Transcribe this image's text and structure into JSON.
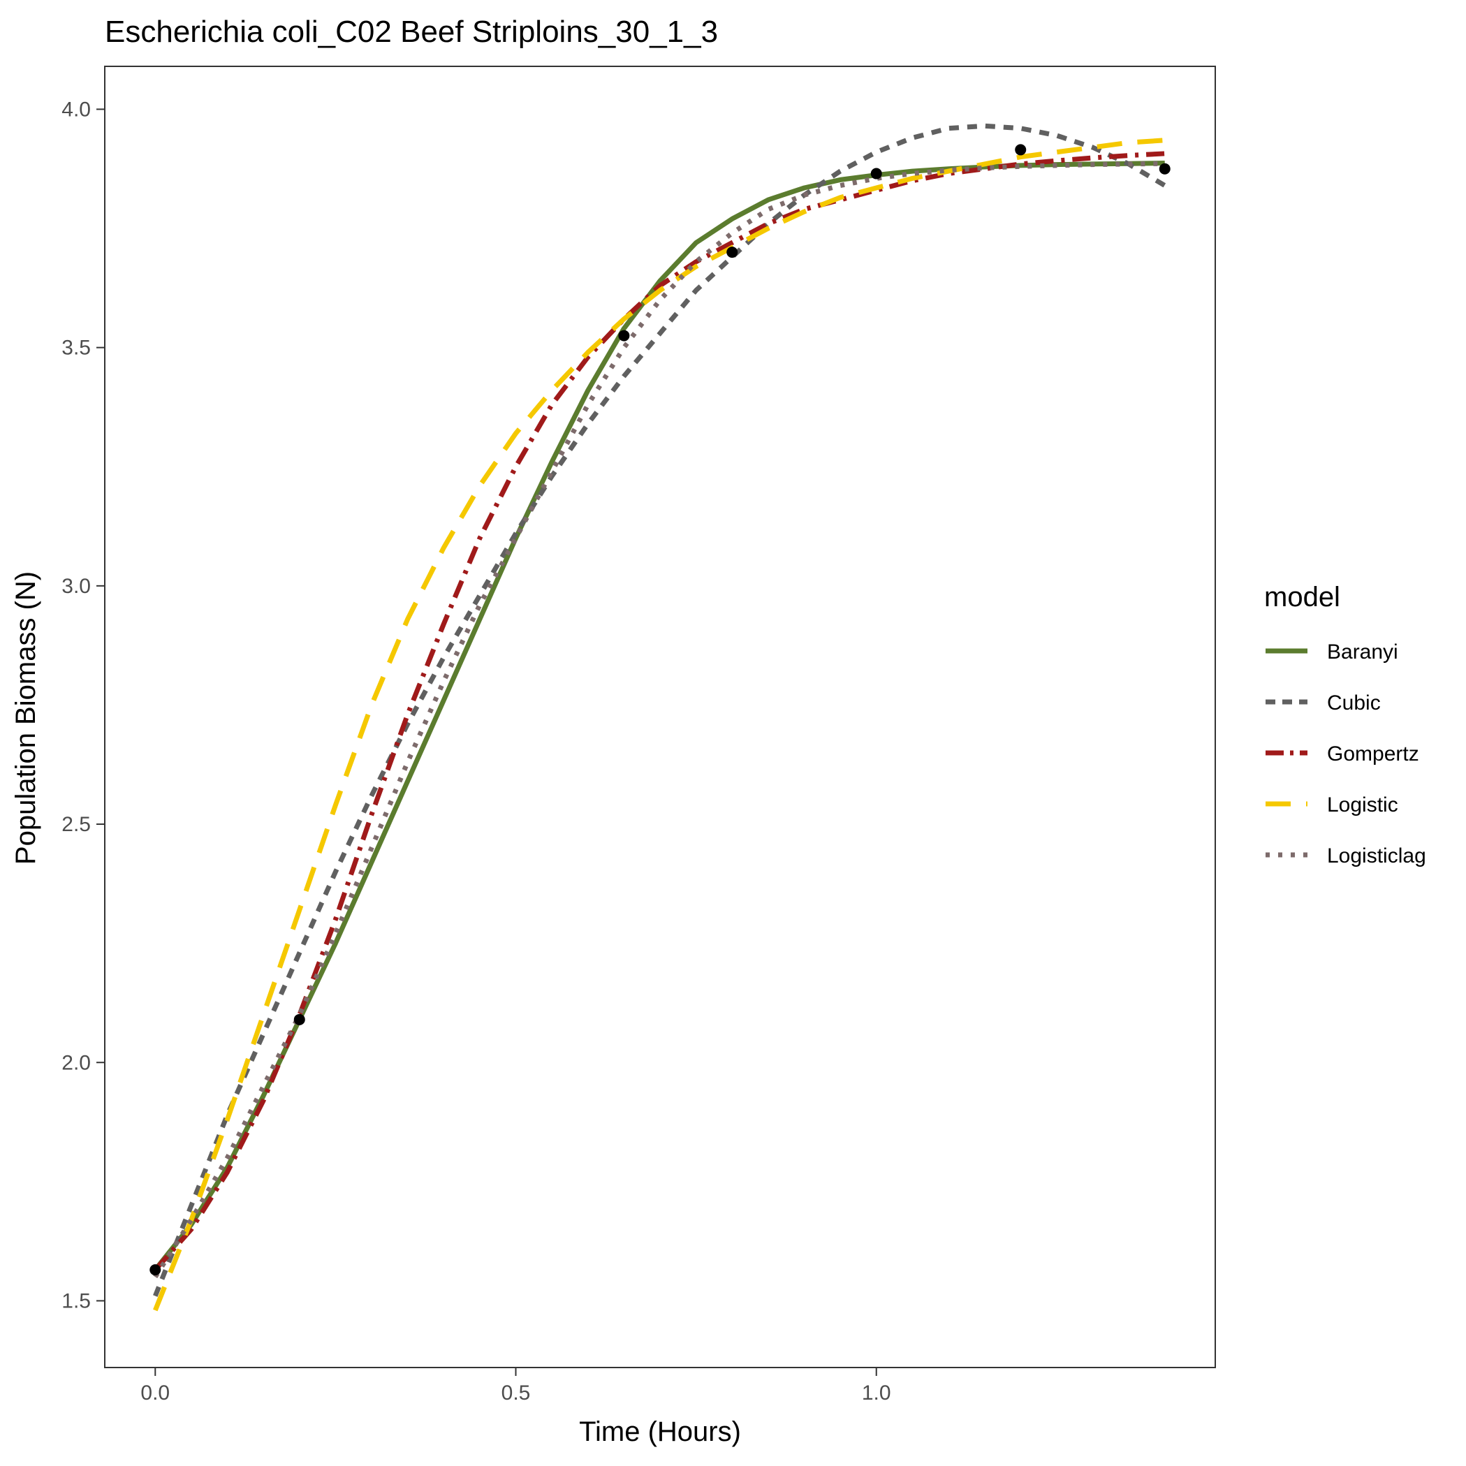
{
  "chart_data": {
    "type": "line",
    "title": "Escherichia coli_C02 Beef Striploins_30_1_3",
    "xlabel": "Time (Hours)",
    "ylabel": "Population Biomass (N)",
    "xlim": [
      -0.07,
      1.47
    ],
    "ylim": [
      1.36,
      4.09
    ],
    "x_ticks": [
      0.0,
      0.5,
      1.0
    ],
    "x_tick_labels": [
      "0.0",
      "0.5",
      "1.0"
    ],
    "y_ticks": [
      1.5,
      2.0,
      2.5,
      3.0,
      3.5,
      4.0
    ],
    "y_tick_labels": [
      "1.5",
      "2.0",
      "2.5",
      "3.0",
      "3.5",
      "4.0"
    ],
    "grid": false,
    "legend": {
      "title": "model",
      "position": "right"
    },
    "points": [
      {
        "x": 0.0,
        "y": 1.565
      },
      {
        "x": 0.2,
        "y": 2.09
      },
      {
        "x": 0.65,
        "y": 3.525
      },
      {
        "x": 0.8,
        "y": 3.7
      },
      {
        "x": 1.0,
        "y": 3.865
      },
      {
        "x": 1.2,
        "y": 3.915
      },
      {
        "x": 1.4,
        "y": 3.875
      }
    ],
    "series": [
      {
        "name": "Baranyi",
        "color": "#5b7c2e",
        "dash": "solid",
        "x": [
          0.0,
          0.05,
          0.1,
          0.15,
          0.2,
          0.25,
          0.3,
          0.35,
          0.4,
          0.45,
          0.5,
          0.55,
          0.6,
          0.65,
          0.7,
          0.75,
          0.8,
          0.85,
          0.9,
          0.95,
          1.0,
          1.05,
          1.1,
          1.15,
          1.2,
          1.25,
          1.3,
          1.35,
          1.4
        ],
        "y": [
          1.565,
          1.66,
          1.78,
          1.93,
          2.09,
          2.25,
          2.42,
          2.59,
          2.76,
          2.93,
          3.1,
          3.26,
          3.41,
          3.54,
          3.64,
          3.72,
          3.77,
          3.81,
          3.835,
          3.852,
          3.862,
          3.87,
          3.875,
          3.879,
          3.882,
          3.884,
          3.885,
          3.886,
          3.887
        ]
      },
      {
        "name": "Cubic",
        "color": "#606060",
        "dash": "dashed",
        "x": [
          0.0,
          0.05,
          0.1,
          0.15,
          0.2,
          0.25,
          0.3,
          0.35,
          0.4,
          0.45,
          0.5,
          0.55,
          0.6,
          0.65,
          0.7,
          0.75,
          0.8,
          0.85,
          0.9,
          0.95,
          1.0,
          1.05,
          1.1,
          1.15,
          1.2,
          1.25,
          1.3,
          1.35,
          1.4
        ],
        "y": [
          1.51,
          1.7,
          1.89,
          2.06,
          2.23,
          2.4,
          2.56,
          2.71,
          2.85,
          2.98,
          3.11,
          3.23,
          3.34,
          3.44,
          3.53,
          3.62,
          3.69,
          3.76,
          3.82,
          3.87,
          3.91,
          3.94,
          3.96,
          3.965,
          3.96,
          3.945,
          3.92,
          3.885,
          3.84
        ]
      },
      {
        "name": "Gompertz",
        "color": "#a01a1a",
        "dash": "dashdot",
        "x": [
          0.0,
          0.05,
          0.1,
          0.15,
          0.2,
          0.25,
          0.3,
          0.35,
          0.4,
          0.45,
          0.5,
          0.55,
          0.6,
          0.65,
          0.7,
          0.75,
          0.8,
          0.85,
          0.9,
          0.95,
          1.0,
          1.05,
          1.1,
          1.15,
          1.2,
          1.25,
          1.3,
          1.35,
          1.4
        ],
        "y": [
          1.565,
          1.65,
          1.77,
          1.92,
          2.1,
          2.3,
          2.52,
          2.73,
          2.92,
          3.1,
          3.25,
          3.38,
          3.48,
          3.56,
          3.63,
          3.68,
          3.72,
          3.76,
          3.79,
          3.81,
          3.83,
          3.85,
          3.865,
          3.875,
          3.885,
          3.892,
          3.898,
          3.903,
          3.907
        ]
      },
      {
        "name": "Logistic",
        "color": "#f5c800",
        "dash": "longdash",
        "x": [
          0.0,
          0.05,
          0.1,
          0.15,
          0.2,
          0.25,
          0.3,
          0.35,
          0.4,
          0.45,
          0.5,
          0.55,
          0.6,
          0.65,
          0.7,
          0.75,
          0.8,
          0.85,
          0.9,
          0.95,
          1.0,
          1.05,
          1.1,
          1.15,
          1.2,
          1.25,
          1.3,
          1.35,
          1.4
        ],
        "y": [
          1.48,
          1.67,
          1.88,
          2.1,
          2.32,
          2.54,
          2.75,
          2.93,
          3.08,
          3.21,
          3.32,
          3.41,
          3.49,
          3.56,
          3.62,
          3.67,
          3.71,
          3.75,
          3.785,
          3.815,
          3.835,
          3.855,
          3.87,
          3.885,
          3.9,
          3.91,
          3.92,
          3.93,
          3.935
        ]
      },
      {
        "name": "Logisticlag",
        "color": "#7d6b6b",
        "dash": "dotted",
        "x": [
          0.0,
          0.05,
          0.1,
          0.15,
          0.2,
          0.25,
          0.3,
          0.35,
          0.4,
          0.45,
          0.5,
          0.55,
          0.6,
          0.65,
          0.7,
          0.75,
          0.8,
          0.85,
          0.9,
          0.95,
          1.0,
          1.05,
          1.1,
          1.15,
          1.2,
          1.25,
          1.3,
          1.35,
          1.4
        ],
        "y": [
          1.55,
          1.67,
          1.8,
          1.95,
          2.1,
          2.27,
          2.45,
          2.63,
          2.8,
          2.96,
          3.1,
          3.24,
          3.38,
          3.5,
          3.6,
          3.68,
          3.74,
          3.79,
          3.82,
          3.84,
          3.855,
          3.865,
          3.872,
          3.877,
          3.88,
          3.882,
          3.884,
          3.885,
          3.886
        ]
      }
    ]
  }
}
